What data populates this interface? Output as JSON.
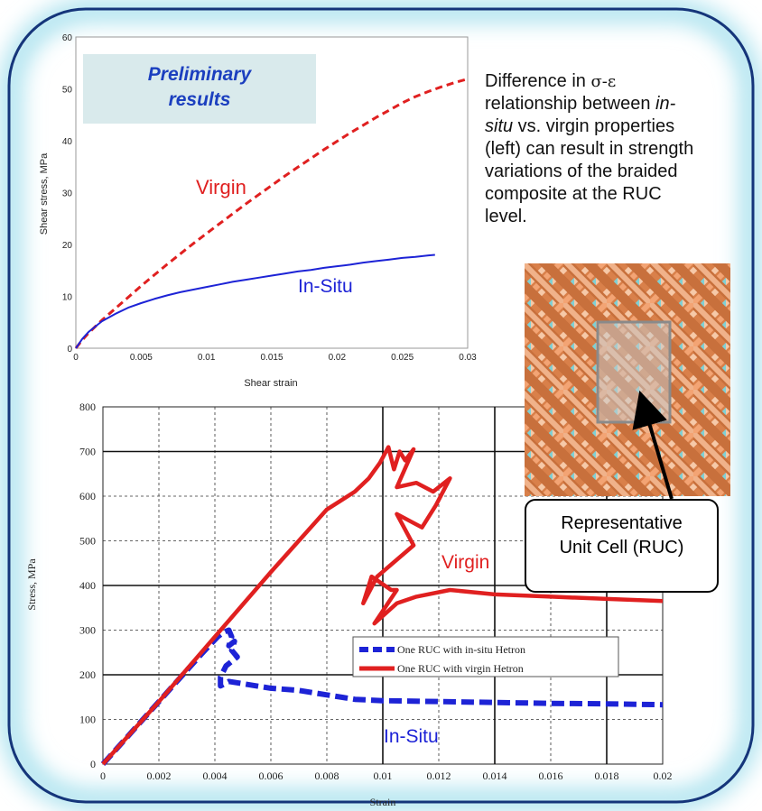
{
  "annotation": {
    "line1_prefix": "Difference in ",
    "line1_symbol": "σ-ε",
    "line2_prefix": "relationship between ",
    "line2_italic": "in-",
    "line3_italic": "situ",
    "line3_rest": " vs. virgin properties",
    "line4": "(left) can result in strength",
    "line5": "variations of the braided",
    "line6": "composite at the RUC",
    "line7": "level."
  },
  "preliminary": {
    "line1": "Preliminary",
    "line2": "results"
  },
  "ruc_callout": {
    "line1": "Representative",
    "line2": "Unit Cell (RUC)"
  },
  "colors": {
    "virgin": "#e02020",
    "insitu": "#1d23d6",
    "frame": "#15357a",
    "glow": "#aee3ef"
  },
  "chart_data": [
    {
      "type": "line",
      "xlabel": "Shear strain",
      "ylabel": "Shear stress, MPa",
      "xlim": [
        0,
        0.03
      ],
      "ylim": [
        0,
        60
      ],
      "xticks": [
        "0",
        "0.005",
        "0.01",
        "0.015",
        "0.02",
        "0.025",
        "0.03"
      ],
      "yticks": [
        "0",
        "10",
        "20",
        "30",
        "40",
        "50",
        "60"
      ],
      "grid": false,
      "series": [
        {
          "name": "Virgin",
          "style": "dashed",
          "x": [
            0,
            0.0005,
            0.001,
            0.002,
            0.003,
            0.004,
            0.005,
            0.006,
            0.007,
            0.008,
            0.009,
            0.01,
            0.011,
            0.012,
            0.013,
            0.014,
            0.015,
            0.016,
            0.017,
            0.018,
            0.019,
            0.02,
            0.021,
            0.022,
            0.023,
            0.024,
            0.025,
            0.026,
            0.027,
            0.028,
            0.029,
            0.03
          ],
          "y": [
            0,
            1.6,
            3.0,
            5.4,
            7.6,
            9.8,
            12.0,
            14.1,
            16.2,
            18.2,
            20.2,
            22.1,
            24.0,
            25.9,
            27.8,
            29.6,
            31.4,
            33.2,
            34.9,
            36.6,
            38.3,
            39.9,
            41.5,
            43.0,
            44.5,
            45.9,
            47.3,
            48.5,
            49.5,
            50.4,
            51.2,
            51.9
          ]
        },
        {
          "name": "In-Situ",
          "style": "solid",
          "x": [
            0,
            0.0005,
            0.001,
            0.002,
            0.003,
            0.004,
            0.005,
            0.006,
            0.007,
            0.008,
            0.009,
            0.01,
            0.011,
            0.012,
            0.013,
            0.014,
            0.015,
            0.016,
            0.017,
            0.018,
            0.019,
            0.02,
            0.021,
            0.022,
            0.023,
            0.024,
            0.025,
            0.026,
            0.027,
            0.0275
          ],
          "y": [
            0,
            1.8,
            3.2,
            5.2,
            6.6,
            7.8,
            8.7,
            9.5,
            10.2,
            10.8,
            11.3,
            11.8,
            12.3,
            12.8,
            13.2,
            13.6,
            14.0,
            14.4,
            14.8,
            15.1,
            15.5,
            15.8,
            16.1,
            16.5,
            16.8,
            17.1,
            17.4,
            17.6,
            17.9,
            18.0
          ]
        }
      ]
    },
    {
      "type": "line",
      "xlabel": "Strain",
      "ylabel": "Stress, MPa",
      "xlim": [
        0,
        0.02
      ],
      "ylim": [
        0,
        800
      ],
      "xticks": [
        "0",
        "0.002",
        "0.004",
        "0.006",
        "0.008",
        "0.01",
        "0.012",
        "0.014",
        "0.016",
        "0.018",
        "0.02"
      ],
      "yticks": [
        "0",
        "100",
        "200",
        "300",
        "400",
        "500",
        "600",
        "700",
        "800"
      ],
      "grid": true,
      "legend": "center-right",
      "series": [
        {
          "name": "One RUC with in-situ Hetron",
          "label": "In-Situ",
          "style": "dashed",
          "x": [
            0,
            0.001,
            0.002,
            0.003,
            0.0035,
            0.0038,
            0.0041,
            0.0043,
            0.0045,
            0.0046,
            0.0045,
            0.0047,
            0.0046,
            0.0048,
            0.0044,
            0.0042,
            0.0042,
            0.0045,
            0.005,
            0.006,
            0.007,
            0.008,
            0.009,
            0.01,
            0.012,
            0.014,
            0.016,
            0.018,
            0.02
          ],
          "y": [
            0,
            70,
            140,
            210,
            245,
            265,
            285,
            295,
            300,
            285,
            265,
            275,
            255,
            240,
            220,
            195,
            175,
            185,
            180,
            170,
            165,
            155,
            145,
            142,
            140,
            138,
            136,
            135,
            133
          ]
        },
        {
          "name": "One RUC with virgin Hetron",
          "label": "Virgin",
          "style": "solid",
          "x": [
            0,
            0.002,
            0.004,
            0.006,
            0.008,
            0.009,
            0.0095,
            0.0099,
            0.0102,
            0.0104,
            0.0106,
            0.0108,
            0.0111,
            0.0105,
            0.0112,
            0.0118,
            0.0124,
            0.0119,
            0.0114,
            0.0105,
            0.0111,
            0.0098,
            0.0093,
            0.0096,
            0.0103,
            0.0105,
            0.0097,
            0.0105,
            0.0112,
            0.0124,
            0.014,
            0.016,
            0.018,
            0.02
          ],
          "y": [
            0,
            140,
            285,
            430,
            570,
            610,
            640,
            675,
            710,
            660,
            700,
            680,
            705,
            620,
            630,
            610,
            640,
            580,
            530,
            560,
            490,
            420,
            360,
            420,
            390,
            390,
            315,
            360,
            375,
            390,
            380,
            375,
            370,
            365
          ]
        }
      ]
    }
  ]
}
